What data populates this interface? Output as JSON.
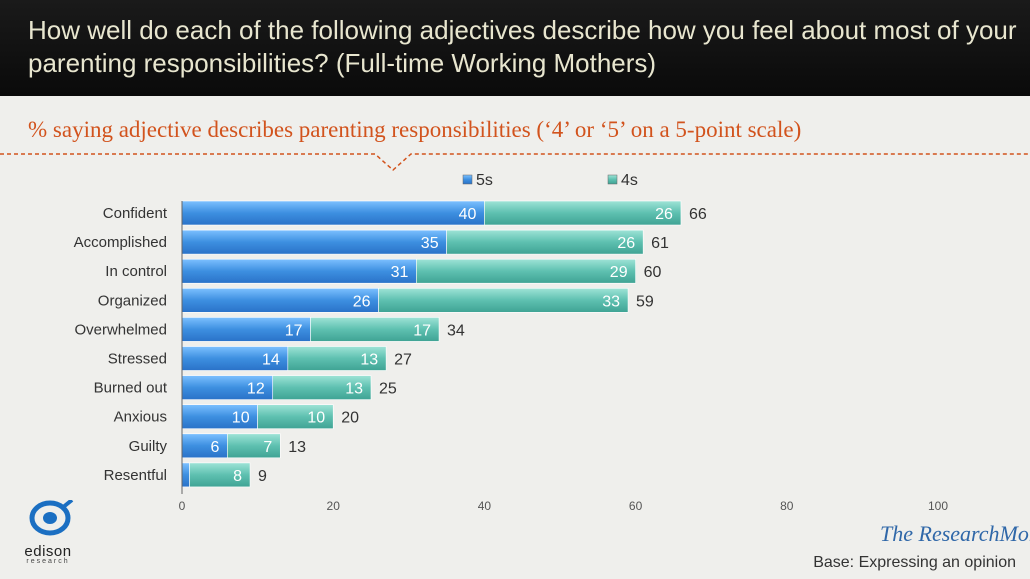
{
  "header": {
    "title": "How well do each of the following adjectives describe how you feel about most of your parenting responsibilities? (Full-time Working Mothers)"
  },
  "subtitle": "% saying adjective describes parenting responsibilities (‘4’ or ‘5’ on a 5-point scale)",
  "colors": {
    "series_5s": "#3d8fe0",
    "series_4s": "#5ec0b0",
    "accent": "#d2531d",
    "header_bg": "#111111"
  },
  "logo": {
    "name": "edison",
    "sub": "research",
    "icon": "edison-research-logo-icon"
  },
  "brand": {
    "text": "The ResearchMoms",
    "icon": "research-moms-logo-icon"
  },
  "footer": {
    "base": "Base: Expressing an opinion"
  },
  "chart_data": {
    "type": "bar",
    "orientation": "horizontal",
    "stacked": true,
    "categories": [
      "Confident",
      "Accomplished",
      "In control",
      "Organized",
      "Overwhelmed",
      "Stressed",
      "Burned out",
      "Anxious",
      "Guilty",
      "Resentful"
    ],
    "series": [
      {
        "name": "5s",
        "values": [
          40,
          35,
          31,
          26,
          17,
          14,
          12,
          10,
          6,
          1
        ],
        "labels": [
          "40",
          "35",
          "31",
          "26",
          "17",
          "14",
          "12",
          "10",
          "6",
          ""
        ]
      },
      {
        "name": "4s",
        "values": [
          26,
          26,
          29,
          33,
          17,
          13,
          13,
          10,
          7,
          8
        ],
        "labels": [
          "26",
          "26",
          "29",
          "33",
          "17",
          "13",
          "13",
          "10",
          "7",
          "8"
        ]
      }
    ],
    "totals": [
      66,
      61,
      60,
      59,
      34,
      27,
      25,
      20,
      13,
      9
    ],
    "xlim": [
      0,
      100
    ],
    "xticks": [
      0,
      20,
      40,
      60,
      80,
      100
    ],
    "legend_position": "top",
    "grid": false
  }
}
